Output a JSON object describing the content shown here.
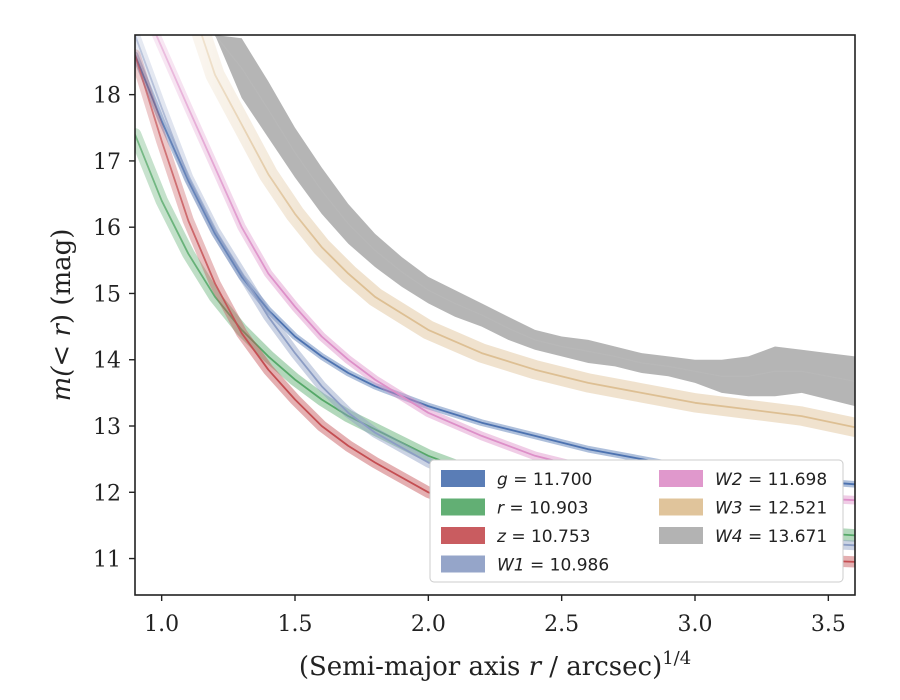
{
  "chart_data": {
    "type": "line",
    "xlabel_main": "(Semi-major axis ",
    "xlabel_var": "r",
    "xlabel_rest": " / arcsec)",
    "xlabel_sup": "1/4",
    "ylabel_pre": "m(< ",
    "ylabel_var": "r",
    "ylabel_post": ") (mag)",
    "xlim": [
      0.9,
      3.6
    ],
    "ylim": [
      18.9,
      10.45
    ],
    "y_inverted": true,
    "xticks": [
      1.0,
      1.5,
      2.0,
      2.5,
      3.0,
      3.5
    ],
    "xtick_labels": [
      "1.0",
      "1.5",
      "2.0",
      "2.5",
      "3.0",
      "3.5"
    ],
    "yticks": [
      11,
      12,
      13,
      14,
      15,
      16,
      17,
      18
    ],
    "ytick_labels": [
      "11",
      "12",
      "13",
      "14",
      "15",
      "16",
      "17",
      "18"
    ],
    "legend_position": "lower-right",
    "series": [
      {
        "key": "g",
        "legend_var": "g",
        "legend_value": "= 11.700",
        "color": "#4c72b0",
        "band": 0.035,
        "start_alpha": 0.9,
        "x": [
          0.9,
          1.0,
          1.1,
          1.2,
          1.3,
          1.4,
          1.5,
          1.6,
          1.7,
          1.8,
          2.0,
          2.2,
          2.4,
          2.6,
          2.8,
          3.0,
          3.2,
          3.4,
          3.6
        ],
        "y": [
          18.6,
          17.6,
          16.7,
          15.9,
          15.25,
          14.75,
          14.35,
          14.05,
          13.8,
          13.6,
          13.3,
          13.05,
          12.85,
          12.65,
          12.5,
          12.35,
          12.25,
          12.18,
          12.12
        ]
      },
      {
        "key": "r",
        "legend_var": "r",
        "legend_value": "= 10.903",
        "color": "#55a868",
        "band": 0.08,
        "start_alpha": 0.7,
        "x": [
          0.9,
          1.0,
          1.1,
          1.2,
          1.3,
          1.4,
          1.5,
          1.6,
          1.7,
          1.8,
          2.0,
          2.2,
          2.4,
          2.6,
          2.8,
          3.0,
          3.2,
          3.4,
          3.6
        ],
        "y": [
          17.4,
          16.4,
          15.6,
          14.95,
          14.45,
          14.05,
          13.7,
          13.4,
          13.15,
          12.95,
          12.55,
          12.25,
          12.0,
          11.8,
          11.65,
          11.55,
          11.45,
          11.4,
          11.35
        ]
      },
      {
        "key": "z",
        "legend_var": "z",
        "legend_value": "= 10.753",
        "color": "#c44e52",
        "band": 0.07,
        "start_alpha": 0.6,
        "x": [
          0.9,
          1.0,
          1.1,
          1.2,
          1.3,
          1.4,
          1.5,
          1.6,
          1.7,
          1.8,
          2.0,
          2.2,
          2.4,
          2.6,
          2.8,
          3.0,
          3.2,
          3.4,
          3.6
        ],
        "y": [
          18.6,
          17.3,
          16.1,
          15.15,
          14.4,
          13.85,
          13.4,
          13.0,
          12.7,
          12.45,
          12.0,
          11.7,
          11.45,
          11.3,
          11.15,
          11.07,
          11.02,
          10.98,
          10.95
        ]
      },
      {
        "key": "W1",
        "legend_var": "W1",
        "legend_value": "= 10.986",
        "color": "#8c9dc4",
        "band": 0.06,
        "start_alpha": 0.45,
        "x": [
          0.9,
          1.0,
          1.1,
          1.2,
          1.3,
          1.4,
          1.5,
          1.6,
          1.7,
          1.8,
          2.0,
          2.2,
          2.4,
          2.6,
          2.8,
          3.0,
          3.2,
          3.4,
          3.6
        ],
        "y": [
          18.9,
          17.8,
          16.75,
          15.95,
          15.3,
          14.65,
          14.1,
          13.6,
          13.2,
          12.9,
          12.45,
          12.1,
          11.85,
          11.65,
          11.5,
          11.38,
          11.3,
          11.24,
          11.2
        ]
      },
      {
        "key": "W2",
        "legend_var": "W2",
        "legend_value": "= 11.698",
        "color": "#dd8fc8",
        "band": 0.05,
        "start_alpha": 0.45,
        "x": [
          0.98,
          1.1,
          1.2,
          1.3,
          1.4,
          1.5,
          1.6,
          1.7,
          1.8,
          2.0,
          2.2,
          2.4,
          2.6,
          2.8,
          3.0,
          3.2,
          3.4,
          3.6
        ],
        "y": [
          18.9,
          17.8,
          16.9,
          16.0,
          15.3,
          14.8,
          14.35,
          14.0,
          13.7,
          13.2,
          12.85,
          12.55,
          12.35,
          12.2,
          12.07,
          11.98,
          11.92,
          11.88
        ]
      },
      {
        "key": "W3",
        "legend_var": "W3",
        "legend_value": "= 12.521",
        "color": "#ddbf93",
        "band": 0.13,
        "start_alpha": 0.35,
        "x": [
          1.15,
          1.2,
          1.3,
          1.4,
          1.5,
          1.6,
          1.7,
          1.8,
          2.0,
          2.2,
          2.4,
          2.6,
          2.8,
          3.0,
          3.2,
          3.4,
          3.6
        ],
        "y": [
          18.9,
          18.3,
          17.55,
          16.8,
          16.2,
          15.7,
          15.3,
          14.95,
          14.45,
          14.1,
          13.85,
          13.65,
          13.5,
          13.35,
          13.25,
          13.15,
          12.98
        ]
      },
      {
        "key": "W4",
        "legend_var": "W4",
        "legend_value": "= 13.671",
        "color": "#a0a0a0",
        "band": 0,
        "start_alpha": 1.0,
        "x": [
          1.2,
          1.3,
          1.4,
          1.5,
          1.6,
          1.7,
          1.8,
          1.9,
          2.0,
          2.1,
          2.2,
          2.3,
          2.4,
          2.5,
          2.6,
          2.7,
          2.8,
          2.9,
          3.0,
          3.1,
          3.2,
          3.3,
          3.4,
          3.5,
          3.6
        ],
        "y_upper": [
          18.9,
          17.95,
          17.35,
          16.75,
          16.2,
          15.75,
          15.4,
          15.1,
          14.85,
          14.65,
          14.5,
          14.3,
          14.15,
          14.05,
          13.95,
          13.9,
          13.8,
          13.75,
          13.65,
          13.5,
          13.45,
          13.45,
          13.5,
          13.4,
          13.3
        ],
        "y_lower": [
          18.9,
          18.85,
          18.2,
          17.5,
          16.9,
          16.35,
          15.9,
          15.55,
          15.25,
          15.05,
          14.85,
          14.65,
          14.45,
          14.35,
          14.3,
          14.2,
          14.1,
          14.05,
          14.0,
          14.0,
          14.05,
          14.2,
          14.15,
          14.1,
          14.05
        ]
      }
    ]
  }
}
